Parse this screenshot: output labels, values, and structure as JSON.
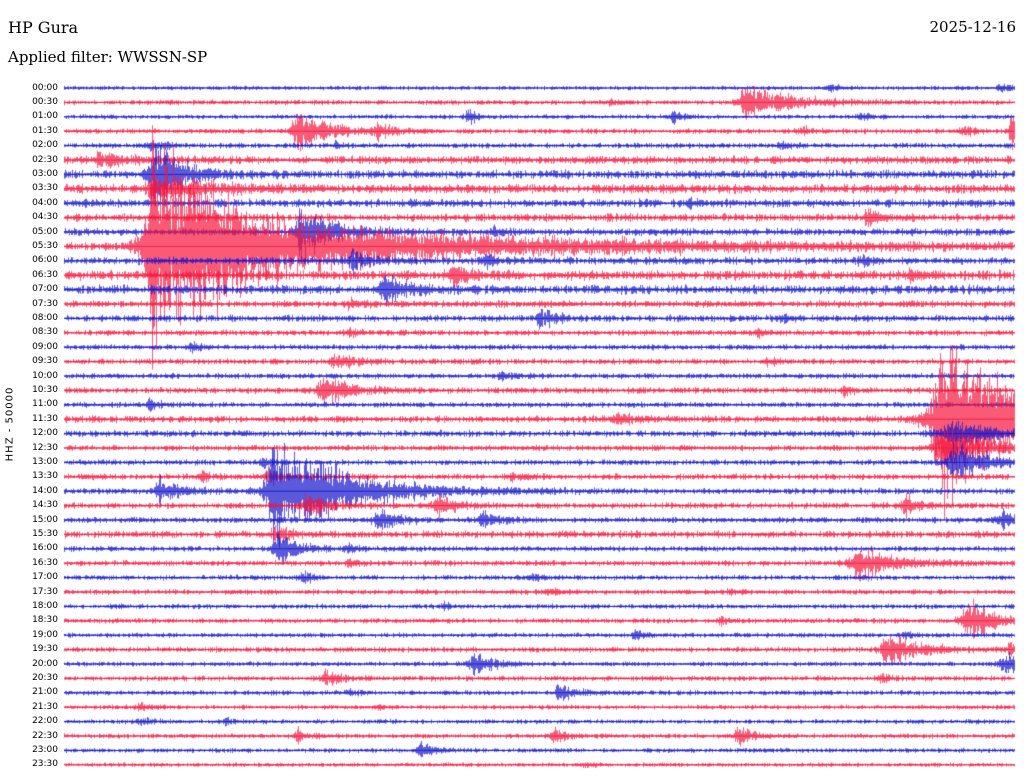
{
  "header": {
    "station": "HP Gura",
    "date": "2025-12-16",
    "filter_label": "Applied filter: WWSSN-SP"
  },
  "axis": {
    "channel_label": "HHZ - 50000"
  },
  "chart_data": {
    "type": "line",
    "subtype": "helicorder",
    "title": "HP Gura helicorder 2025-12-16, WWSSN-SP filter, channel HHZ, scale 50000",
    "minutes_per_row": 30,
    "legend_position": "none",
    "grid": false,
    "trace_colors": {
      "blue": "#1212cc",
      "red": "#f6143c"
    },
    "rows": [
      {
        "time": "00:00",
        "color": "blue",
        "noise": 1.4
      },
      {
        "time": "00:30",
        "color": "red",
        "noise": 1.6
      },
      {
        "time": "01:00",
        "color": "blue",
        "noise": 1.5
      },
      {
        "time": "01:30",
        "color": "red",
        "noise": 1.7
      },
      {
        "time": "02:00",
        "color": "blue",
        "noise": 1.8
      },
      {
        "time": "02:30",
        "color": "red",
        "noise": 2.6
      },
      {
        "time": "03:00",
        "color": "blue",
        "noise": 2.8
      },
      {
        "time": "03:30",
        "color": "red",
        "noise": 3.0
      },
      {
        "time": "04:00",
        "color": "blue",
        "noise": 2.7
      },
      {
        "time": "04:30",
        "color": "red",
        "noise": 2.6
      },
      {
        "time": "05:00",
        "color": "blue",
        "noise": 2.5
      },
      {
        "time": "05:30",
        "color": "red",
        "noise": 2.6
      },
      {
        "time": "06:00",
        "color": "blue",
        "noise": 2.5
      },
      {
        "time": "06:30",
        "color": "red",
        "noise": 3.2
      },
      {
        "time": "07:00",
        "color": "blue",
        "noise": 3.0
      },
      {
        "time": "07:30",
        "color": "red",
        "noise": 2.3
      },
      {
        "time": "08:00",
        "color": "blue",
        "noise": 2.2
      },
      {
        "time": "08:30",
        "color": "red",
        "noise": 1.9
      },
      {
        "time": "09:00",
        "color": "blue",
        "noise": 1.8
      },
      {
        "time": "09:30",
        "color": "red",
        "noise": 1.9
      },
      {
        "time": "10:00",
        "color": "blue",
        "noise": 1.8
      },
      {
        "time": "10:30",
        "color": "red",
        "noise": 2.0
      },
      {
        "time": "11:00",
        "color": "blue",
        "noise": 1.8
      },
      {
        "time": "11:30",
        "color": "red",
        "noise": 2.3
      },
      {
        "time": "12:00",
        "color": "blue",
        "noise": 2.2
      },
      {
        "time": "12:30",
        "color": "red",
        "noise": 1.9
      },
      {
        "time": "13:00",
        "color": "blue",
        "noise": 1.9
      },
      {
        "time": "13:30",
        "color": "red",
        "noise": 2.0
      },
      {
        "time": "14:00",
        "color": "blue",
        "noise": 2.0
      },
      {
        "time": "14:30",
        "color": "red",
        "noise": 2.0
      },
      {
        "time": "15:00",
        "color": "blue",
        "noise": 1.9
      },
      {
        "time": "15:30",
        "color": "red",
        "noise": 2.4
      },
      {
        "time": "16:00",
        "color": "blue",
        "noise": 1.8
      },
      {
        "time": "16:30",
        "color": "red",
        "noise": 1.9
      },
      {
        "time": "17:00",
        "color": "blue",
        "noise": 1.7
      },
      {
        "time": "17:30",
        "color": "red",
        "noise": 1.7
      },
      {
        "time": "18:00",
        "color": "blue",
        "noise": 1.6
      },
      {
        "time": "18:30",
        "color": "red",
        "noise": 1.7
      },
      {
        "time": "19:00",
        "color": "blue",
        "noise": 1.6
      },
      {
        "time": "19:30",
        "color": "red",
        "noise": 1.8
      },
      {
        "time": "20:00",
        "color": "blue",
        "noise": 1.6
      },
      {
        "time": "20:30",
        "color": "red",
        "noise": 1.7
      },
      {
        "time": "21:00",
        "color": "blue",
        "noise": 1.6
      },
      {
        "time": "21:30",
        "color": "red",
        "noise": 1.5
      },
      {
        "time": "22:00",
        "color": "blue",
        "noise": 1.5
      },
      {
        "time": "22:30",
        "color": "red",
        "noise": 1.6
      },
      {
        "time": "23:00",
        "color": "blue",
        "noise": 1.5
      },
      {
        "time": "23:30",
        "color": "red",
        "noise": 1.4
      }
    ],
    "events_format": [
      "row",
      "x_fraction",
      "amplitude_px",
      "rise_fraction",
      "decay_fraction"
    ],
    "events": [
      [
        0,
        0.805,
        4,
        0.003,
        0.01
      ],
      [
        0,
        0.985,
        5,
        0.003,
        0.012
      ],
      [
        1,
        0.575,
        4,
        0.003,
        0.01
      ],
      [
        1,
        0.715,
        16,
        0.004,
        0.05
      ],
      [
        2,
        0.425,
        13,
        0.002,
        0.006
      ],
      [
        2,
        0.64,
        5,
        0.003,
        0.012
      ],
      [
        2,
        0.838,
        5,
        0.003,
        0.01
      ],
      [
        3,
        0.245,
        22,
        0.004,
        0.03
      ],
      [
        3,
        0.33,
        8,
        0.004,
        0.02
      ],
      [
        3,
        0.775,
        5,
        0.003,
        0.012
      ],
      [
        3,
        0.945,
        6,
        0.003,
        0.012
      ],
      [
        3,
        0.997,
        20,
        0.002,
        0.004
      ],
      [
        4,
        0.09,
        6,
        0.003,
        0.015
      ],
      [
        4,
        0.285,
        3,
        0.002,
        0.008
      ],
      [
        4,
        0.755,
        4,
        0.003,
        0.01
      ],
      [
        5,
        0.035,
        6,
        0.003,
        0.04
      ],
      [
        6,
        0.092,
        30,
        0.004,
        0.03
      ],
      [
        7,
        0.09,
        10,
        0.004,
        0.06
      ],
      [
        8,
        0.66,
        4,
        0.003,
        0.01
      ],
      [
        9,
        0.845,
        7,
        0.003,
        0.015
      ],
      [
        10,
        0.248,
        26,
        0.004,
        0.03
      ],
      [
        10,
        0.45,
        5,
        0.003,
        0.012
      ],
      [
        11,
        0.092,
        120,
        0.006,
        0.05
      ],
      [
        11,
        0.15,
        30,
        0.02,
        0.25
      ],
      [
        12,
        0.303,
        12,
        0.003,
        0.015
      ],
      [
        12,
        0.445,
        6,
        0.003,
        0.012
      ],
      [
        12,
        0.84,
        5,
        0.003,
        0.01
      ],
      [
        13,
        0.41,
        9,
        0.004,
        0.02
      ],
      [
        13,
        0.89,
        7,
        0.003,
        0.015
      ],
      [
        14,
        0.335,
        13,
        0.004,
        0.025
      ],
      [
        15,
        0.3,
        5,
        0.003,
        0.015
      ],
      [
        16,
        0.5,
        9,
        0.003,
        0.018
      ],
      [
        16,
        0.755,
        5,
        0.003,
        0.012
      ],
      [
        17,
        0.3,
        4,
        0.003,
        0.01
      ],
      [
        17,
        0.73,
        4,
        0.003,
        0.01
      ],
      [
        18,
        0.135,
        4,
        0.003,
        0.01
      ],
      [
        19,
        0.285,
        8,
        0.004,
        0.02
      ],
      [
        19,
        0.74,
        4,
        0.003,
        0.01
      ],
      [
        20,
        0.46,
        4,
        0.003,
        0.01
      ],
      [
        21,
        0.27,
        14,
        0.004,
        0.03
      ],
      [
        21,
        0.82,
        5,
        0.003,
        0.01
      ],
      [
        22,
        0.09,
        5,
        0.003,
        0.012
      ],
      [
        23,
        0.58,
        7,
        0.003,
        0.015
      ],
      [
        23,
        0.925,
        90,
        0.008,
        0.04
      ],
      [
        23,
        0.965,
        25,
        0.02,
        0.08
      ],
      [
        24,
        0.93,
        15,
        0.005,
        0.04
      ],
      [
        25,
        0.92,
        20,
        0.005,
        0.05
      ],
      [
        26,
        0.21,
        5,
        0.003,
        0.01
      ],
      [
        26,
        0.935,
        18,
        0.005,
        0.04
      ],
      [
        27,
        0.145,
        5,
        0.003,
        0.01
      ],
      [
        27,
        0.215,
        8,
        0.003,
        0.015
      ],
      [
        27,
        0.47,
        4,
        0.003,
        0.01
      ],
      [
        28,
        0.1,
        12,
        0.004,
        0.02
      ],
      [
        28,
        0.22,
        55,
        0.006,
        0.07
      ],
      [
        29,
        0.255,
        12,
        0.004,
        0.025
      ],
      [
        29,
        0.39,
        10,
        0.004,
        0.02
      ],
      [
        29,
        0.885,
        14,
        0.003,
        0.01
      ],
      [
        30,
        0.33,
        12,
        0.004,
        0.02
      ],
      [
        30,
        0.44,
        8,
        0.003,
        0.015
      ],
      [
        30,
        0.985,
        10,
        0.004,
        0.02
      ],
      [
        31,
        0.22,
        6,
        0.003,
        0.02
      ],
      [
        32,
        0.225,
        15,
        0.004,
        0.02
      ],
      [
        32,
        0.3,
        5,
        0.003,
        0.01
      ],
      [
        33,
        0.3,
        4,
        0.003,
        0.01
      ],
      [
        33,
        0.835,
        18,
        0.005,
        0.035
      ],
      [
        34,
        0.25,
        6,
        0.003,
        0.012
      ],
      [
        34,
        0.49,
        5,
        0.003,
        0.012
      ],
      [
        35,
        0.51,
        4,
        0.003,
        0.01
      ],
      [
        35,
        0.7,
        3,
        0.003,
        0.008
      ],
      [
        36,
        0.4,
        3,
        0.003,
        0.008
      ],
      [
        37,
        0.69,
        4,
        0.003,
        0.01
      ],
      [
        37,
        0.95,
        22,
        0.004,
        0.025
      ],
      [
        38,
        0.6,
        5,
        0.003,
        0.012
      ],
      [
        38,
        0.885,
        4,
        0.003,
        0.01
      ],
      [
        39,
        0.865,
        18,
        0.004,
        0.03
      ],
      [
        39,
        0.995,
        8,
        0.003,
        0.01
      ],
      [
        40,
        0.43,
        12,
        0.004,
        0.02
      ],
      [
        40,
        0.99,
        12,
        0.004,
        0.015
      ],
      [
        41,
        0.275,
        8,
        0.003,
        0.015
      ],
      [
        41,
        0.86,
        4,
        0.003,
        0.01
      ],
      [
        42,
        0.3,
        4,
        0.003,
        0.01
      ],
      [
        42,
        0.52,
        9,
        0.003,
        0.018
      ],
      [
        43,
        0.08,
        4,
        0.003,
        0.01
      ],
      [
        43,
        0.33,
        3,
        0.003,
        0.008
      ],
      [
        44,
        0.08,
        5,
        0.003,
        0.012
      ],
      [
        44,
        0.17,
        3,
        0.003,
        0.008
      ],
      [
        45,
        0.245,
        6,
        0.003,
        0.012
      ],
      [
        45,
        0.515,
        8,
        0.003,
        0.015
      ],
      [
        45,
        0.71,
        12,
        0.003,
        0.012
      ],
      [
        46,
        0.375,
        7,
        0.003,
        0.015
      ],
      [
        47,
        0.55,
        3,
        0.003,
        0.008
      ]
    ]
  }
}
